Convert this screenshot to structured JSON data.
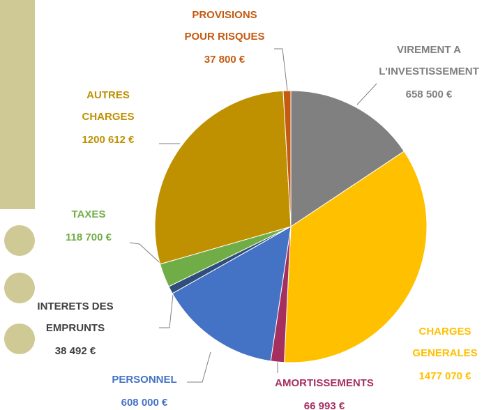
{
  "chart_data": {
    "type": "pie",
    "categories": [
      "VIREMENT  A\nL'INVESTISSEMENT",
      "CHARGES\nGENERALES",
      "AMORTISSEMENTS",
      "PERSONNEL",
      "INTERETS  DES\nEMPRUNTS",
      "TAXES",
      "AUTRES\nCHARGES",
      "PROVISIONS\nPOUR RISQUES"
    ],
    "values": [
      658500,
      1477070,
      66993,
      608000,
      38492,
      118700,
      1200612,
      37800
    ],
    "value_labels": [
      "658 500 €",
      "1477 070 €",
      "66 993 €",
      "608 000 €",
      "38 492 €",
      "118 700 €",
      "1200 612 €",
      "37 800 €"
    ],
    "colors": [
      "#808080",
      "#ffc000",
      "#a5305f",
      "#4472c4",
      "#2f4f7a",
      "#70ad47",
      "#bf9000",
      "#c55a11"
    ],
    "label_colors": [
      "#7f7f7f",
      "#ffc000",
      "#a5305f",
      "#4472c4",
      "#404040",
      "#70ad47",
      "#bf9000",
      "#c55a11"
    ]
  }
}
